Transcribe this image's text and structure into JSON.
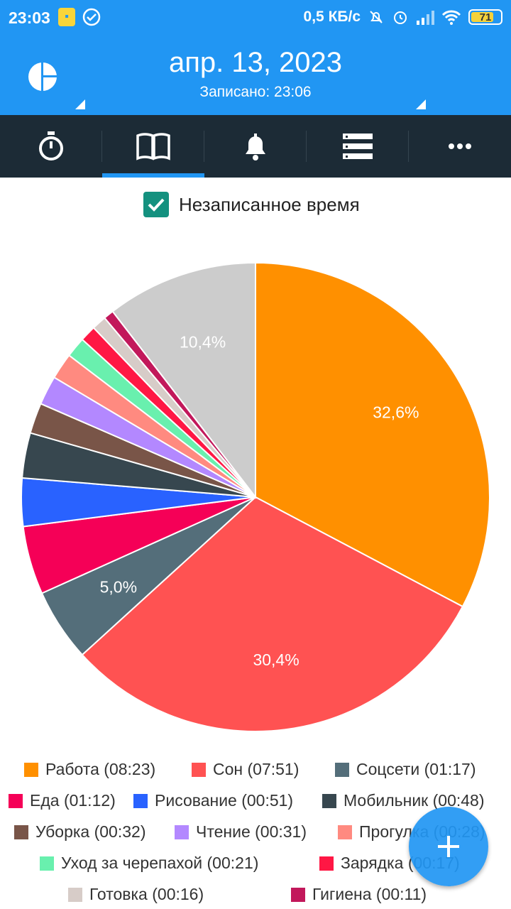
{
  "status_bar": {
    "time": "23:03",
    "speed": "0,5 КБ/с",
    "battery": "71"
  },
  "header": {
    "date": "апр. 13, 2023",
    "recorded": "Записано: 23:06"
  },
  "tabs": [
    {
      "icon": "stopwatch-icon",
      "active": false
    },
    {
      "icon": "book-icon",
      "active": true
    },
    {
      "icon": "bell-icon",
      "active": false
    },
    {
      "icon": "list-icon",
      "active": false
    },
    {
      "icon": "more-icon",
      "active": false
    }
  ],
  "unrecorded_checkbox": {
    "label": "Незаписанное время",
    "checked": true
  },
  "chart_data": {
    "type": "pie",
    "slices": [
      {
        "label": "Работа",
        "duration": "08:23",
        "percent": 32.6,
        "color": "#FF9000"
      },
      {
        "label": "Сон",
        "duration": "07:51",
        "percent": 30.4,
        "color": "#FF5252"
      },
      {
        "label": "Соцсети",
        "duration": "01:17",
        "percent": 5.0,
        "color": "#546E7A"
      },
      {
        "label": "Еда",
        "duration": "01:12",
        "percent": 4.7,
        "color": "#F50057"
      },
      {
        "label": "Рисование",
        "duration": "00:51",
        "percent": 3.3,
        "color": "#2962FF"
      },
      {
        "label": "Мобильник",
        "duration": "00:48",
        "percent": 3.1,
        "color": "#37474F"
      },
      {
        "label": "Уборка",
        "duration": "00:32",
        "percent": 2.1,
        "color": "#795548"
      },
      {
        "label": "Чтение",
        "duration": "00:31",
        "percent": 2.0,
        "color": "#B388FF"
      },
      {
        "label": "Прогулка",
        "duration": "00:28",
        "percent": 1.8,
        "color": "#FF8A80"
      },
      {
        "label": "Уход за черепахой",
        "duration": "00:21",
        "percent": 1.4,
        "color": "#69F0AE"
      },
      {
        "label": "Зарядка",
        "duration": "00:17",
        "percent": 1.1,
        "color": "#FF1744"
      },
      {
        "label": "Готовка",
        "duration": "00:16",
        "percent": 1.0,
        "color": "#D7CCC8"
      },
      {
        "label": "Гигиена",
        "duration": "00:11",
        "percent": 0.7,
        "color": "#C2185B"
      },
      {
        "label": "Незаписанное время",
        "duration": "",
        "percent": 10.4,
        "color": "#CCCCCC"
      }
    ],
    "shown_percent_labels": [
      "32,6%",
      "30,4%",
      "5,0%",
      "10,4%"
    ]
  },
  "legend": [
    "Работа (08:23)",
    "Сон (07:51)",
    "Соцсети (01:17)",
    "Еда (01:12)",
    "Рисование  (00:51)",
    "Мобильник  (00:48)",
    "Уборка (00:32)",
    "Чтение (00:31)",
    "Прогулка (00:28)",
    "Уход за черепахой  (00:21)",
    "Зарядка  (00:17)",
    "Готовка (00:16)",
    "Гигиена  (00:11)"
  ],
  "fab": {
    "icon": "plus-icon"
  }
}
